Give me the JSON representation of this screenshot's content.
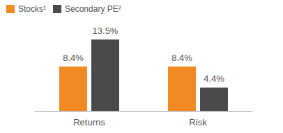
{
  "chart_data": {
    "type": "bar",
    "categories": [
      "Returns",
      "Risk"
    ],
    "series": [
      {
        "name": "Stocks¹",
        "color": "#f28a24",
        "values": [
          8.4,
          8.4
        ],
        "value_labels": [
          "8.4%",
          "8.4%"
        ]
      },
      {
        "name": "Secondary PE²",
        "color": "#4a4a4a",
        "values": [
          13.5,
          4.4
        ],
        "value_labels": [
          "13.5%",
          "4.4%"
        ]
      }
    ],
    "ylim": [
      0,
      16
    ],
    "grid": false,
    "legend": "upper left",
    "data_labels": true,
    "tick_labels": "x"
  }
}
